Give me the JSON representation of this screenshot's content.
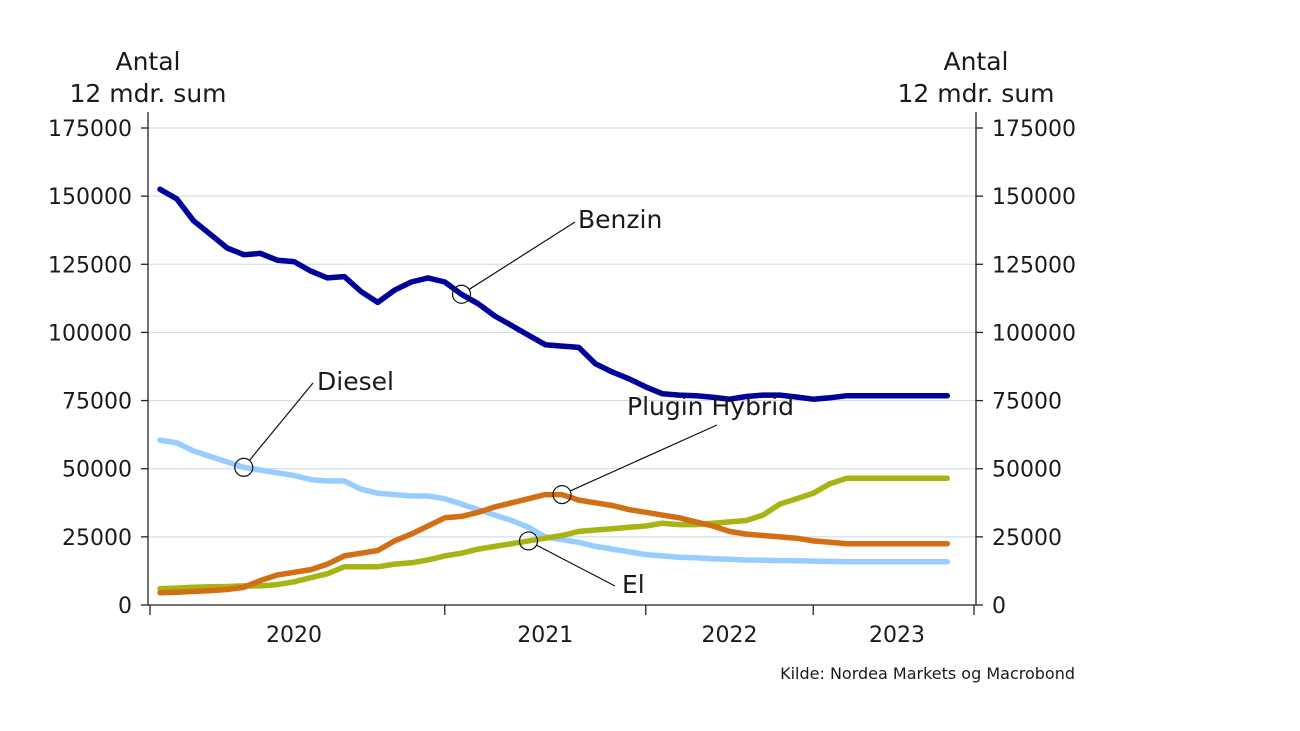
{
  "chart_data": {
    "type": "line",
    "y_title_left": [
      "Antal",
      "12 mdr. sum"
    ],
    "y_title_right": [
      "Antal",
      "12 mdr. sum"
    ],
    "ylim": [
      0,
      175000
    ],
    "yticks": [
      0,
      25000,
      50000,
      75000,
      100000,
      125000,
      150000,
      175000
    ],
    "ytick_labels": [
      "0",
      "25000",
      "50000",
      "75000",
      "100000",
      "125000",
      "150000",
      "175000"
    ],
    "x_range": [
      "2019-07",
      "2023-07"
    ],
    "x_tick_boundaries": [
      "2020-12",
      "2021-12",
      "2022-10"
    ],
    "x_year_labels": [
      {
        "label": "2020",
        "center": "2020-03"
      },
      {
        "label": "2021",
        "center": "2021-06"
      },
      {
        "label": "2022",
        "center": "2022-05"
      },
      {
        "label": "2023",
        "center": "2023-03"
      }
    ],
    "grid": "horizontal",
    "x": [
      "2019-07",
      "2019-08",
      "2019-09",
      "2019-10",
      "2019-11",
      "2019-12",
      "2020-01",
      "2020-02",
      "2020-03",
      "2020-04",
      "2020-05",
      "2020-06",
      "2020-07",
      "2020-08",
      "2020-09",
      "2020-10",
      "2020-11",
      "2020-12",
      "2021-01",
      "2021-02",
      "2021-03",
      "2021-04",
      "2021-05",
      "2021-06",
      "2021-07",
      "2021-08",
      "2021-09",
      "2021-10",
      "2021-11",
      "2021-12",
      "2022-01",
      "2022-02",
      "2022-03",
      "2022-04",
      "2022-05",
      "2022-06",
      "2022-07",
      "2022-08",
      "2022-09",
      "2022-10",
      "2022-11",
      "2022-12",
      "2023-01",
      "2023-02",
      "2023-03",
      "2023-04",
      "2023-05",
      "2023-06"
    ],
    "series": [
      {
        "name": "Benzin",
        "color": "#00009a",
        "values": [
          152500,
          149000,
          141000,
          136000,
          131000,
          128500,
          129000,
          126500,
          126000,
          122500,
          120000,
          120500,
          115000,
          111000,
          115500,
          118500,
          120000,
          118500,
          114000,
          110500,
          106000,
          102500,
          99000,
          95500,
          95000,
          94500,
          88500,
          85500,
          83000,
          80000,
          77500,
          77000,
          76800,
          76200,
          75500,
          76500,
          77000,
          77000,
          76300,
          75500,
          76000,
          76800,
          76800,
          76800,
          76800,
          76800,
          76800,
          76800
        ]
      },
      {
        "name": "Diesel",
        "color": "#99ccff",
        "values": [
          60500,
          59500,
          56500,
          54500,
          52500,
          50500,
          49500,
          48500,
          47500,
          46000,
          45500,
          45500,
          42500,
          41000,
          40500,
          40000,
          40000,
          39000,
          37000,
          35000,
          33000,
          31000,
          28500,
          25000,
          24000,
          23000,
          21500,
          20500,
          19500,
          18500,
          18000,
          17500,
          17300,
          17000,
          16800,
          16500,
          16400,
          16300,
          16200,
          16100,
          16000,
          15900,
          15900,
          15900,
          15900,
          15900,
          15900,
          15900
        ]
      },
      {
        "name": "Plugin Hybrid",
        "color": "#d26e14",
        "values": [
          4500,
          4700,
          5000,
          5300,
          5700,
          6500,
          9000,
          11000,
          12000,
          13000,
          15000,
          18000,
          19000,
          20000,
          23500,
          26000,
          29000,
          32000,
          32500,
          34000,
          36000,
          37500,
          39000,
          40500,
          40500,
          38500,
          37500,
          36500,
          35000,
          34000,
          33000,
          32000,
          30500,
          29000,
          27000,
          26000,
          25500,
          25000,
          24500,
          23500,
          23000,
          22500,
          22500,
          22500,
          22500,
          22500,
          22500,
          22500
        ]
      },
      {
        "name": "El",
        "color": "#a6b414",
        "values": [
          6000,
          6200,
          6500,
          6700,
          6800,
          7000,
          7000,
          7500,
          8500,
          10000,
          11500,
          14000,
          14000,
          14000,
          15000,
          15500,
          16500,
          18000,
          19000,
          20500,
          21500,
          22500,
          23500,
          24500,
          25500,
          27000,
          27500,
          28000,
          28500,
          29000,
          30000,
          29500,
          29500,
          30000,
          30500,
          31000,
          33000,
          37000,
          39000,
          41000,
          44500,
          46500,
          46500,
          46500,
          46500,
          46500,
          46500,
          46500
        ]
      }
    ],
    "annotations": [
      {
        "text": "Benzin",
        "series": "Benzin",
        "at": "2021-01"
      },
      {
        "text": "Diesel",
        "series": "Diesel",
        "at": "2019-12"
      },
      {
        "text": "Plugin Hybrid",
        "series": "Plugin Hybrid",
        "at": "2021-07"
      },
      {
        "text": "El",
        "series": "El",
        "at": "2021-05"
      }
    ],
    "source": "Kilde: Nordea Markets og Macrobond"
  }
}
